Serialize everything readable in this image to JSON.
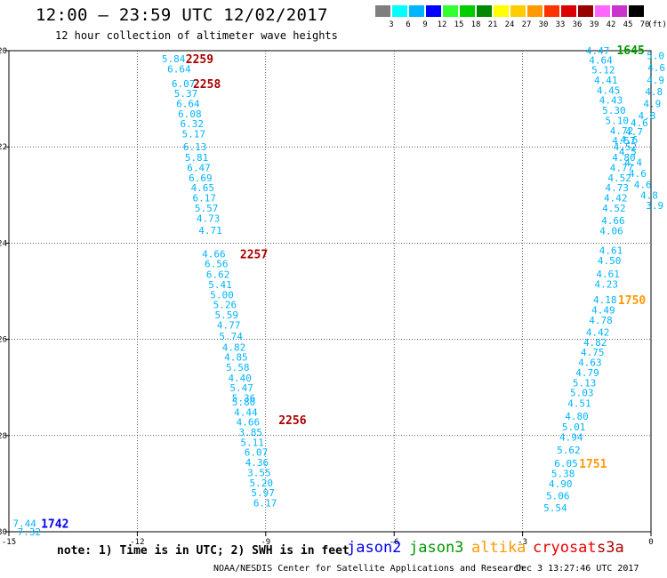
{
  "title": "12:00 — 23:59 UTC 12/02/2017",
  "subtitle": "12 hour collection of altimeter wave heights",
  "legend": {
    "unit": "(ft)",
    "bins": [
      {
        "label": "3",
        "color": "#7f7f7f"
      },
      {
        "label": "6",
        "color": "#00ffff"
      },
      {
        "label": "9",
        "color": "#00b4ff"
      },
      {
        "label": "12",
        "color": "#0000ff"
      },
      {
        "label": "15",
        "color": "#33ff33"
      },
      {
        "label": "18",
        "color": "#00cc00"
      },
      {
        "label": "21",
        "color": "#008800"
      },
      {
        "label": "24",
        "color": "#ffff00"
      },
      {
        "label": "27",
        "color": "#ffcc00"
      },
      {
        "label": "30",
        "color": "#ff9900"
      },
      {
        "label": "33",
        "color": "#ff3300"
      },
      {
        "label": "36",
        "color": "#dd0000"
      },
      {
        "label": "39",
        "color": "#990000"
      },
      {
        "label": "42",
        "color": "#ff66ff"
      },
      {
        "label": "45",
        "color": "#cc33cc"
      },
      {
        "label": "70",
        "color": "#000000"
      }
    ]
  },
  "note": "note: 1) Time is in UTC; 2) SWH is in feet",
  "satellites": [
    {
      "name": "jason2",
      "color": "#0000ee"
    },
    {
      "name": "jason3",
      "color": "#009900"
    },
    {
      "name": "altika",
      "color": "#ff9900"
    },
    {
      "name": "cryosat",
      "color": "#ee0000"
    },
    {
      "name": "s3a",
      "color": "#aa0000"
    }
  ],
  "footer_left": "NOAA/NESDIS Center for Satellite Applications and Research",
  "footer_right": "Dec  3 13:27:46 UTC 2017",
  "chart_data": {
    "type": "scatter",
    "xlim": [
      -15,
      0
    ],
    "ylim": [
      -30,
      -20
    ],
    "x_ticks": [
      "-15",
      "-12",
      "-9",
      "-6",
      "-3",
      "0"
    ],
    "y_ticks": [
      "-20",
      "-22",
      "-24",
      "-26",
      "-28",
      "-30"
    ],
    "colors": {
      "swh": "#00b4ff",
      "jason2": "#0000ee",
      "jason3": "#009900",
      "altika": "#ff9900",
      "s3a": "#aa0000"
    },
    "time_labels": [
      {
        "text": "2259",
        "lon": -10.87,
        "lat": -20.17,
        "sat": "s3a"
      },
      {
        "text": "2258",
        "lon": -10.7,
        "lat": -20.68,
        "sat": "s3a"
      },
      {
        "text": "2257",
        "lon": -9.6,
        "lat": -24.22,
        "sat": "s3a"
      },
      {
        "text": "2256",
        "lon": -8.7,
        "lat": -27.67,
        "sat": "s3a"
      },
      {
        "text": "1742",
        "lon": -14.25,
        "lat": -29.82,
        "sat": "jason2"
      },
      {
        "text": "1645",
        "lon": -0.8,
        "lat": -19.98,
        "sat": "jason3"
      },
      {
        "text": "1750",
        "lon": -0.77,
        "lat": -25.18,
        "sat": "altika"
      },
      {
        "text": "1751",
        "lon": -1.68,
        "lat": -28.58,
        "sat": "altika"
      }
    ],
    "tracks": [
      {
        "name": "s3a",
        "points": [
          {
            "lon": -11.43,
            "lat": -20.17,
            "v": "5.84"
          },
          {
            "lon": -11.3,
            "lat": -20.38,
            "v": "6.64"
          },
          {
            "lon": -11.2,
            "lat": -20.68,
            "v": "6.07"
          },
          {
            "lon": -11.14,
            "lat": -20.89,
            "v": "5.37"
          },
          {
            "lon": -11.09,
            "lat": -21.1,
            "v": "6.64"
          },
          {
            "lon": -11.05,
            "lat": -21.31,
            "v": "6.08"
          },
          {
            "lon": -11.0,
            "lat": -21.52,
            "v": "6.32"
          },
          {
            "lon": -10.96,
            "lat": -21.73,
            "v": "5.17"
          },
          {
            "lon": -10.93,
            "lat": -22.0,
            "v": "6.13"
          },
          {
            "lon": -10.89,
            "lat": -22.22,
            "v": "5.81"
          },
          {
            "lon": -10.84,
            "lat": -22.43,
            "v": "6.47"
          },
          {
            "lon": -10.8,
            "lat": -22.64,
            "v": "6.69"
          },
          {
            "lon": -10.75,
            "lat": -22.85,
            "v": "4.65"
          },
          {
            "lon": -10.71,
            "lat": -23.06,
            "v": "6.17"
          },
          {
            "lon": -10.66,
            "lat": -23.27,
            "v": "5.57"
          },
          {
            "lon": -10.62,
            "lat": -23.48,
            "v": "4.73"
          },
          {
            "lon": -10.57,
            "lat": -23.73,
            "v": "4.71"
          },
          {
            "lon": -10.49,
            "lat": -24.22,
            "v": "4.66"
          },
          {
            "lon": -10.43,
            "lat": -24.43,
            "v": "6.56"
          },
          {
            "lon": -10.39,
            "lat": -24.65,
            "v": "6.62"
          },
          {
            "lon": -10.34,
            "lat": -24.86,
            "v": "5.41"
          },
          {
            "lon": -10.3,
            "lat": -25.07,
            "v": "5.00"
          },
          {
            "lon": -10.23,
            "lat": -25.28,
            "v": "5.26"
          },
          {
            "lon": -10.19,
            "lat": -25.49,
            "v": "5.59"
          },
          {
            "lon": -10.14,
            "lat": -25.7,
            "v": "4.77"
          },
          {
            "lon": -10.09,
            "lat": -25.93,
            "v": "5.74"
          },
          {
            "lon": -10.02,
            "lat": -26.16,
            "v": "4.82"
          },
          {
            "lon": -9.97,
            "lat": -26.37,
            "v": "4.85"
          },
          {
            "lon": -9.93,
            "lat": -26.58,
            "v": "5.58"
          },
          {
            "lon": -9.88,
            "lat": -26.8,
            "v": "4.40"
          },
          {
            "lon": -9.84,
            "lat": -27.01,
            "v": "5.47"
          },
          {
            "lon": -9.79,
            "lat": -27.22,
            "v": "5.36"
          },
          {
            "lon": -9.79,
            "lat": -27.3,
            "v": "5.80"
          },
          {
            "lon": -9.74,
            "lat": -27.51,
            "v": "4.44"
          },
          {
            "lon": -9.69,
            "lat": -27.72,
            "v": "4.66"
          },
          {
            "lon": -9.63,
            "lat": -27.93,
            "v": "3.85"
          },
          {
            "lon": -9.59,
            "lat": -28.14,
            "v": "5.11"
          },
          {
            "lon": -9.5,
            "lat": -28.35,
            "v": "6.07"
          },
          {
            "lon": -9.48,
            "lat": -28.56,
            "v": "4.36"
          },
          {
            "lon": -9.43,
            "lat": -28.77,
            "v": "3.55"
          },
          {
            "lon": -9.38,
            "lat": -28.98,
            "v": "5.20"
          },
          {
            "lon": -9.34,
            "lat": -29.19,
            "v": "5.97"
          },
          {
            "lon": -9.29,
            "lat": -29.4,
            "v": "6.17"
          }
        ]
      },
      {
        "name": "jason2",
        "points": [
          {
            "lon": -14.91,
            "lat": -29.82,
            "v": "7.44"
          },
          {
            "lon": -14.8,
            "lat": -30.0,
            "v": "7.32"
          }
        ]
      },
      {
        "name": "altika",
        "points": [
          {
            "lon": -1.52,
            "lat": -20.0,
            "v": "4.47"
          },
          {
            "lon": -1.45,
            "lat": -20.19,
            "v": "4.64"
          },
          {
            "lon": -1.39,
            "lat": -20.4,
            "v": "5.12"
          },
          {
            "lon": -1.33,
            "lat": -20.61,
            "v": "4.41"
          },
          {
            "lon": -1.27,
            "lat": -20.82,
            "v": "4.45"
          },
          {
            "lon": -1.21,
            "lat": -21.03,
            "v": "4.43"
          },
          {
            "lon": -1.14,
            "lat": -21.24,
            "v": "5.30"
          },
          {
            "lon": -1.07,
            "lat": -21.45,
            "v": "5.10"
          },
          {
            "lon": -0.96,
            "lat": -21.66,
            "v": "4.72"
          },
          {
            "lon": -0.91,
            "lat": -21.87,
            "v": "4.57"
          },
          {
            "lon": -0.88,
            "lat": -22.0,
            "v": "4.52"
          },
          {
            "lon": -0.91,
            "lat": -22.22,
            "v": "4.80"
          },
          {
            "lon": -0.96,
            "lat": -22.43,
            "v": "4.77"
          },
          {
            "lon": -1.01,
            "lat": -22.64,
            "v": "4.52"
          },
          {
            "lon": -1.07,
            "lat": -22.85,
            "v": "4.73"
          },
          {
            "lon": -1.1,
            "lat": -23.06,
            "v": "4.42"
          },
          {
            "lon": -1.14,
            "lat": -23.27,
            "v": "4.52"
          },
          {
            "lon": -1.16,
            "lat": -23.53,
            "v": "4.66"
          },
          {
            "lon": -1.2,
            "lat": -23.74,
            "v": "4.06"
          },
          {
            "lon": -1.21,
            "lat": -24.15,
            "v": "4.61"
          },
          {
            "lon": -1.25,
            "lat": -24.36,
            "v": "4.50"
          },
          {
            "lon": -1.28,
            "lat": -24.64,
            "v": "4.61"
          },
          {
            "lon": -1.32,
            "lat": -24.85,
            "v": "4.23"
          },
          {
            "lon": -1.35,
            "lat": -25.18,
            "v": "4.18"
          },
          {
            "lon": -1.39,
            "lat": -25.39,
            "v": "4.49"
          },
          {
            "lon": -1.45,
            "lat": -25.6,
            "v": "4.78"
          },
          {
            "lon": -1.52,
            "lat": -25.85,
            "v": "4.42"
          },
          {
            "lon": -1.58,
            "lat": -26.06,
            "v": "4.82"
          },
          {
            "lon": -1.64,
            "lat": -26.27,
            "v": "4.75"
          },
          {
            "lon": -1.7,
            "lat": -26.48,
            "v": "4.63"
          },
          {
            "lon": -1.76,
            "lat": -26.69,
            "v": "4.79"
          },
          {
            "lon": -1.83,
            "lat": -26.9,
            "v": "5.13"
          },
          {
            "lon": -1.89,
            "lat": -27.11,
            "v": "5.03"
          },
          {
            "lon": -1.95,
            "lat": -27.33,
            "v": "4.51"
          },
          {
            "lon": -2.01,
            "lat": -27.6,
            "v": "4.80"
          },
          {
            "lon": -2.08,
            "lat": -27.82,
            "v": "5.01"
          },
          {
            "lon": -2.14,
            "lat": -28.03,
            "v": "4.94"
          },
          {
            "lon": -2.2,
            "lat": -28.3,
            "v": "5.62"
          },
          {
            "lon": -2.26,
            "lat": -28.58,
            "v": "6.05"
          },
          {
            "lon": -2.33,
            "lat": -28.79,
            "v": "5.38"
          },
          {
            "lon": -2.39,
            "lat": -29.0,
            "v": "4.90"
          },
          {
            "lon": -2.45,
            "lat": -29.25,
            "v": "5.06"
          },
          {
            "lon": -2.51,
            "lat": -29.5,
            "v": "5.54"
          }
        ]
      },
      {
        "name": "jason3",
        "points": [
          {
            "lon": -0.1,
            "lat": -20.1,
            "v": "5.0"
          },
          {
            "lon": -0.08,
            "lat": -20.35,
            "v": "4.6"
          },
          {
            "lon": -0.1,
            "lat": -20.61,
            "v": "4.9"
          },
          {
            "lon": -0.14,
            "lat": -20.85,
            "v": "4.8"
          },
          {
            "lon": -0.18,
            "lat": -21.1,
            "v": "4.9"
          },
          {
            "lon": -0.3,
            "lat": -21.35,
            "v": "4.8"
          },
          {
            "lon": -0.48,
            "lat": -21.5,
            "v": "4.6"
          },
          {
            "lon": -0.6,
            "lat": -21.68,
            "v": "4.7"
          },
          {
            "lon": -0.72,
            "lat": -21.85,
            "v": "4.6"
          },
          {
            "lon": -0.75,
            "lat": -22.1,
            "v": "4.5"
          },
          {
            "lon": -0.62,
            "lat": -22.32,
            "v": "4.4"
          },
          {
            "lon": -0.52,
            "lat": -22.55,
            "v": "4.6"
          },
          {
            "lon": -0.4,
            "lat": -22.78,
            "v": "4.6"
          },
          {
            "lon": -0.25,
            "lat": -23.0,
            "v": "4.8"
          },
          {
            "lon": -0.12,
            "lat": -23.22,
            "v": "3.9"
          },
          {
            "lon": -0.04,
            "lat": -23.45,
            "v": "4."
          },
          {
            "lon": 0.0,
            "lat": -23.7,
            "v": "4."
          }
        ]
      }
    ]
  }
}
